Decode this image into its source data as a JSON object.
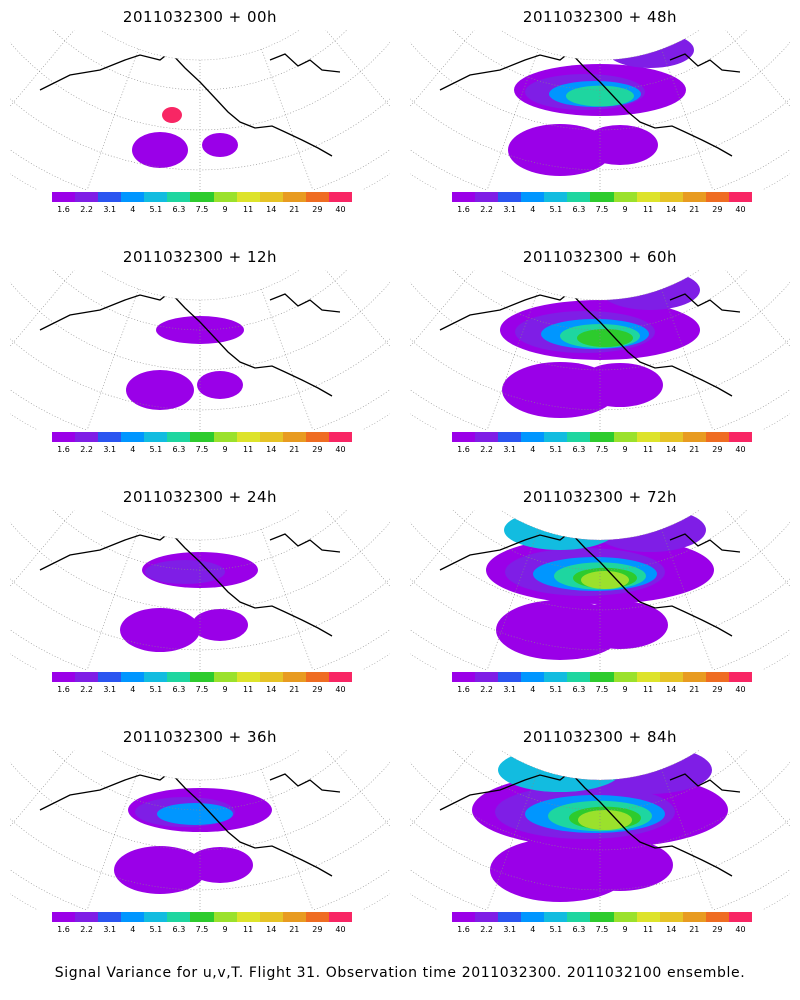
{
  "colorbar": {
    "colors": [
      "#9a00e8",
      "#7f1ee6",
      "#2a55f0",
      "#0096ff",
      "#12bce0",
      "#1ed6a0",
      "#2dcb2d",
      "#9be12c",
      "#dde32a",
      "#e6c326",
      "#e89b21",
      "#ef6c22",
      "#f82664"
    ],
    "ticks": [
      "1.6",
      "2.2",
      "3.1",
      "4",
      "5.1",
      "6.3",
      "7.5",
      "9",
      "11",
      "14",
      "21",
      "29",
      "40"
    ]
  },
  "panels": [
    {
      "title": "2011032300 + 00h",
      "level": 0
    },
    {
      "title": "2011032300 + 48h",
      "level": 4
    },
    {
      "title": "2011032300 + 12h",
      "level": 1
    },
    {
      "title": "2011032300 + 60h",
      "level": 5
    },
    {
      "title": "2011032300 + 24h",
      "level": 2
    },
    {
      "title": "2011032300 + 72h",
      "level": 6
    },
    {
      "title": "2011032300 + 36h",
      "level": 3
    },
    {
      "title": "2011032300 + 84h",
      "level": 7
    }
  ],
  "caption": "Signal Variance for u,v,T. Flight 31. Observation time 2011032300. 2011032100 ensemble."
}
